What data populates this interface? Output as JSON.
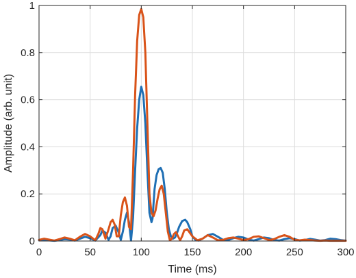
{
  "chart_data": {
    "type": "line",
    "xlabel": "Time (ms)",
    "ylabel": "Amplitude (arb. unit)",
    "xlim": [
      0,
      300
    ],
    "ylim": [
      0,
      1
    ],
    "xticks": [
      0,
      50,
      100,
      150,
      200,
      250,
      300
    ],
    "xtick_labels": [
      "0",
      "50",
      "100",
      "150",
      "200",
      "250",
      "300"
    ],
    "yticks": [
      0,
      0.2,
      0.4,
      0.6,
      0.8,
      1
    ],
    "ytick_labels": [
      "0",
      "0.2",
      "0.4",
      "0.6",
      "0.8",
      "1"
    ],
    "grid": true,
    "legend": "none",
    "series": [
      {
        "color": "#1f6fb4",
        "x": [
          0,
          5,
          10,
          15,
          20,
          25,
          30,
          35,
          40,
          45,
          50,
          55,
          60,
          62,
          65,
          68,
          70,
          72,
          75,
          78,
          80,
          82,
          84,
          86,
          88,
          90,
          92,
          94,
          96,
          98,
          100,
          102,
          104,
          106,
          108,
          110,
          111,
          113,
          115,
          117,
          119,
          121,
          123,
          125,
          127,
          129,
          131,
          133,
          135,
          137,
          140,
          143,
          145,
          148,
          150,
          153,
          156,
          160,
          165,
          170,
          175,
          180,
          185,
          190,
          195,
          200,
          205,
          210,
          215,
          220,
          225,
          230,
          235,
          240,
          245,
          250,
          255,
          260,
          265,
          270,
          275,
          280,
          285,
          290,
          295,
          300
        ],
        "y": [
          0.003,
          0.006,
          0.003,
          0.001,
          0.004,
          0.008,
          0.006,
          0.002,
          0.01,
          0.018,
          0.012,
          0.002,
          0.025,
          0.045,
          0.035,
          0.005,
          0.02,
          0.055,
          0.065,
          0.035,
          0.005,
          0.04,
          0.09,
          0.12,
          0.08,
          0.002,
          0.1,
          0.3,
          0.48,
          0.6,
          0.655,
          0.62,
          0.5,
          0.3,
          0.12,
          0.08,
          0.095,
          0.22,
          0.28,
          0.305,
          0.31,
          0.29,
          0.22,
          0.12,
          0.05,
          0.02,
          0.01,
          0.015,
          0.035,
          0.06,
          0.085,
          0.09,
          0.08,
          0.05,
          0.02,
          0.005,
          0.002,
          0.01,
          0.025,
          0.03,
          0.018,
          0.005,
          0.004,
          0.012,
          0.018,
          0.015,
          0.006,
          0.002,
          0.008,
          0.015,
          0.012,
          0.004,
          0.002,
          0.008,
          0.012,
          0.008,
          0.002,
          0.004,
          0.009,
          0.006,
          0.002,
          0.004,
          0.01,
          0.008,
          0.004,
          0.002
        ]
      },
      {
        "color": "#d95319",
        "x": [
          0,
          5,
          10,
          15,
          20,
          25,
          30,
          35,
          40,
          45,
          50,
          55,
          58,
          60,
          62,
          65,
          68,
          70,
          72,
          74,
          76,
          78,
          80,
          82,
          84,
          86,
          88,
          90,
          92,
          94,
          96,
          98,
          100,
          102,
          104,
          106,
          108,
          110,
          112,
          114,
          116,
          118,
          120,
          122,
          124,
          126,
          128,
          130,
          132,
          134,
          136,
          138,
          140,
          142,
          145,
          150,
          155,
          160,
          165,
          170,
          175,
          180,
          185,
          190,
          195,
          200,
          205,
          210,
          215,
          220,
          225,
          230,
          235,
          240,
          245,
          250,
          255,
          260,
          265,
          270,
          275,
          280,
          285,
          290,
          295,
          300
        ],
        "y": [
          0.005,
          0.01,
          0.006,
          0.002,
          0.008,
          0.015,
          0.01,
          0.003,
          0.018,
          0.03,
          0.02,
          0.003,
          0.03,
          0.055,
          0.05,
          0.01,
          0.05,
          0.08,
          0.09,
          0.07,
          0.02,
          0.02,
          0.11,
          0.165,
          0.185,
          0.15,
          0.06,
          0.05,
          0.3,
          0.62,
          0.85,
          0.96,
          0.985,
          0.95,
          0.8,
          0.5,
          0.2,
          0.12,
          0.105,
          0.13,
          0.18,
          0.22,
          0.235,
          0.2,
          0.12,
          0.04,
          0.003,
          0.01,
          0.03,
          0.038,
          0.02,
          0.003,
          0.02,
          0.045,
          0.05,
          0.02,
          0.003,
          0.01,
          0.025,
          0.015,
          0.003,
          0.005,
          0.012,
          0.015,
          0.01,
          0.004,
          0.008,
          0.018,
          0.02,
          0.012,
          0.004,
          0.008,
          0.018,
          0.025,
          0.018,
          0.005,
          0.003,
          0.006,
          0.004,
          0.002,
          0.001,
          0.002,
          0.001,
          0.001,
          0.001,
          0.001
        ]
      }
    ]
  }
}
